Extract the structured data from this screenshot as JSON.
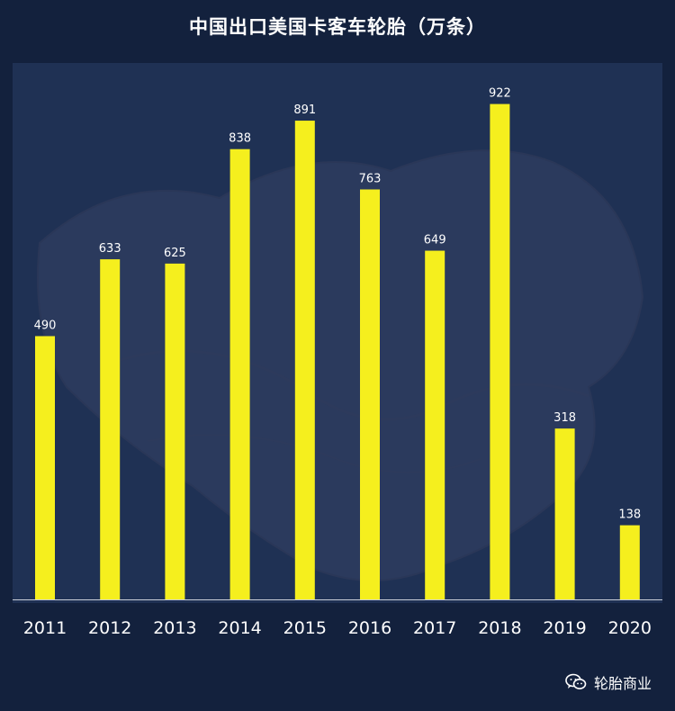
{
  "title": "中国出口美国卡客车轮胎（万条）",
  "watermark": {
    "icon": "wechat-icon",
    "text": "轮胎商业"
  },
  "colors": {
    "background": "#13213d",
    "panel": "#1f3154",
    "bar": "#f5ef1e",
    "text": "#ffffff",
    "axis": "#c8ccd6"
  },
  "chart_data": {
    "type": "bar",
    "title": "中国出口美国卡客车轮胎（万条）",
    "xlabel": "",
    "ylabel": "",
    "categories": [
      "2011",
      "2012",
      "2013",
      "2014",
      "2015",
      "2016",
      "2017",
      "2018",
      "2019",
      "2020"
    ],
    "values": [
      490,
      633,
      625,
      838,
      891,
      763,
      649,
      922,
      318,
      138
    ],
    "ylim": [
      0,
      1000
    ],
    "grid": false,
    "legend": "none",
    "data_labels": true
  }
}
